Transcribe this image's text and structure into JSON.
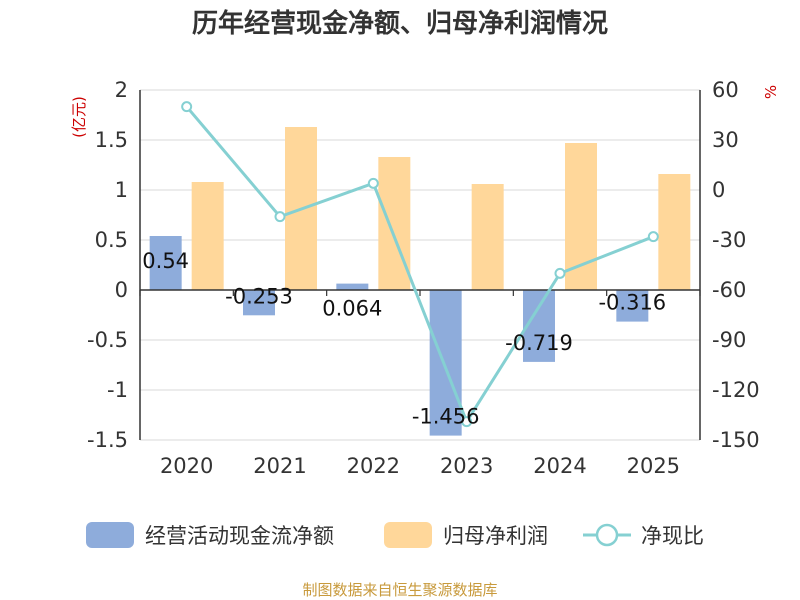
{
  "chart_data": {
    "type": "bar+line",
    "title": "历年经营现金净额、归母净利润情况",
    "categories": [
      "2020",
      "2021",
      "2022",
      "2023",
      "2024",
      "2025"
    ],
    "series": [
      {
        "name": "经营活动现金流净额",
        "type": "bar",
        "axis": "left",
        "color": "#8eacdb",
        "values": [
          0.54,
          -0.253,
          0.064,
          -1.456,
          -0.719,
          -0.316
        ],
        "labels": [
          "0.54",
          "-0.253",
          "0.064",
          "-1.456",
          "-0.719",
          "-0.316"
        ]
      },
      {
        "name": "归母净利润",
        "type": "bar",
        "axis": "left",
        "color": "#ffd79a",
        "values": [
          1.08,
          1.63,
          1.33,
          1.06,
          1.47,
          1.16
        ]
      },
      {
        "name": "净现比",
        "type": "line",
        "axis": "right",
        "color": "#85d0d2",
        "values": [
          50,
          -16,
          4,
          -139,
          -50,
          -28
        ]
      }
    ],
    "left_axis": {
      "unit": "(亿元)",
      "ylim": [
        -1.5,
        2
      ],
      "ticks": [
        2,
        1.5,
        1,
        0.5,
        0,
        -0.5,
        -1,
        -1.5
      ],
      "tick_labels": [
        "2",
        "1.5",
        "1",
        "0.5",
        "0",
        "-0.5",
        "-1",
        "-1.5"
      ]
    },
    "right_axis": {
      "unit": "%",
      "ylim": [
        -150,
        60
      ],
      "ticks": [
        60,
        30,
        0,
        -30,
        -60,
        -90,
        -120,
        -150
      ],
      "tick_labels": [
        "60",
        "30",
        "0",
        "-30",
        "-60",
        "-90",
        "-120",
        "-150"
      ]
    },
    "legend": [
      "经营活动现金流净额",
      "归母净利润",
      "净现比"
    ],
    "legend_position": "bottom",
    "grid": true
  },
  "source": "制图数据来自恒生聚源数据库"
}
